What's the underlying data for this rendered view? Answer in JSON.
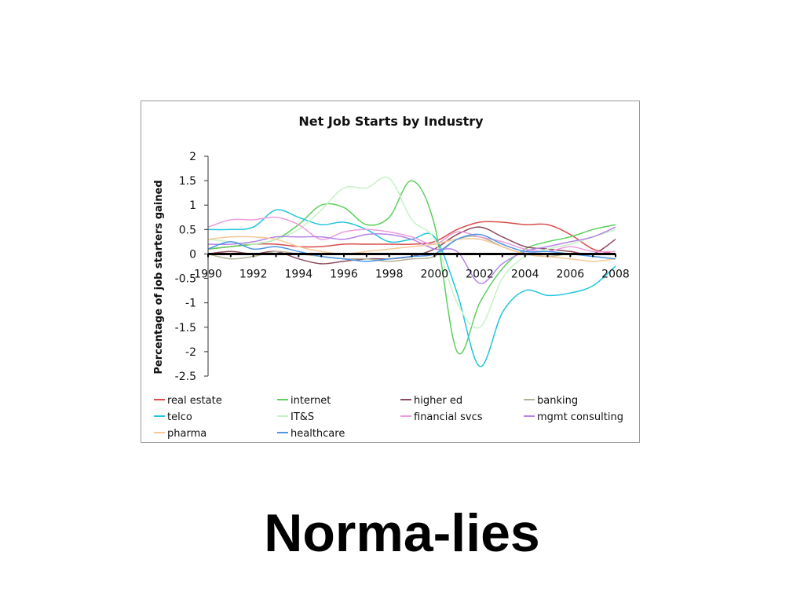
{
  "slide": {
    "caption": "Norma-lies"
  },
  "chart_data": {
    "type": "line",
    "title": "Net Job Starts by Industry",
    "xlabel": "",
    "ylabel": "Percentage of job starters gained",
    "ylim": [
      -2.5,
      2
    ],
    "yticks": [
      2,
      1.5,
      1,
      0.5,
      0,
      -0.5,
      -1,
      -1.5,
      -2,
      -2.5
    ],
    "ytick_labels": [
      "2",
      "1.5",
      "1",
      "0.5",
      "0",
      "-0.5",
      "-1",
      "-1.5",
      "-2",
      "-2.5"
    ],
    "xlim": [
      1990,
      2008
    ],
    "xticks": [
      1990,
      1992,
      1994,
      1996,
      1998,
      2000,
      2002,
      2004,
      2006,
      2008
    ],
    "xtick_labels": [
      "1990",
      "1992",
      "1994",
      "1996",
      "1998",
      "2000",
      "2002",
      "2004",
      "2006",
      "2008"
    ],
    "x": [
      1990,
      1991,
      1992,
      1993,
      1994,
      1995,
      1996,
      1997,
      1998,
      1999,
      2000,
      2001,
      2002,
      2003,
      2004,
      2005,
      2006,
      2007,
      2008
    ],
    "grid": false,
    "legend_position": "bottom",
    "series": [
      {
        "name": "real estate",
        "color": "#d94c4c",
        "values": [
          0.1,
          0.15,
          0.2,
          0.2,
          0.15,
          0.15,
          0.2,
          0.2,
          0.2,
          0.2,
          0.25,
          0.5,
          0.65,
          0.65,
          0.6,
          0.6,
          0.4,
          0.1,
          0.0
        ]
      },
      {
        "name": "internet",
        "color": "#5ccf5c",
        "values": [
          0.1,
          0.15,
          0.2,
          0.3,
          0.6,
          1.0,
          0.95,
          0.6,
          0.75,
          1.5,
          0.6,
          -2.0,
          -1.0,
          -0.3,
          0.1,
          0.25,
          0.35,
          0.5,
          0.6
        ]
      },
      {
        "name": "higher ed",
        "color": "#8c4a5a",
        "values": [
          0.0,
          0.05,
          0.0,
          0.05,
          -0.1,
          -0.2,
          -0.15,
          -0.1,
          -0.1,
          -0.05,
          0.1,
          0.4,
          0.55,
          0.35,
          0.15,
          0.1,
          0.05,
          0.0,
          0.3
        ]
      },
      {
        "name": "banking",
        "color": "#b2b296",
        "values": [
          0.0,
          -0.1,
          -0.05,
          0.05,
          0.0,
          -0.05,
          -0.1,
          -0.1,
          -0.15,
          -0.1,
          -0.05,
          0.3,
          0.35,
          0.15,
          0.0,
          -0.05,
          0.0,
          -0.05,
          -0.1
        ]
      },
      {
        "name": "telco",
        "color": "#22c5de",
        "values": [
          0.5,
          0.5,
          0.55,
          0.9,
          0.75,
          0.6,
          0.65,
          0.5,
          0.25,
          0.3,
          0.35,
          -0.8,
          -2.3,
          -1.2,
          -0.75,
          -0.85,
          -0.8,
          -0.65,
          -0.25
        ]
      },
      {
        "name": "IT&S",
        "color": "#c6f2c6",
        "values": [
          0.3,
          0.25,
          0.2,
          0.3,
          0.5,
          0.9,
          1.35,
          1.35,
          1.55,
          0.7,
          0.3,
          -1.0,
          -1.5,
          -0.5,
          -0.05,
          0.1,
          0.2,
          0.35,
          0.5
        ]
      },
      {
        "name": "financial svcs",
        "color": "#ec9cdc",
        "values": [
          0.55,
          0.7,
          0.7,
          0.75,
          0.6,
          0.3,
          0.45,
          0.5,
          0.45,
          0.35,
          0.2,
          0.45,
          0.35,
          0.25,
          0.1,
          0.05,
          0.15,
          0.05,
          0.05
        ]
      },
      {
        "name": "mgmt consulting",
        "color": "#b583e6",
        "values": [
          0.2,
          0.2,
          0.25,
          0.35,
          0.35,
          0.35,
          0.3,
          0.4,
          0.4,
          0.3,
          0.1,
          0.05,
          -0.6,
          -0.2,
          0.05,
          0.15,
          0.25,
          0.35,
          0.55
        ]
      },
      {
        "name": "pharma",
        "color": "#f5c896",
        "values": [
          0.3,
          0.35,
          0.35,
          0.3,
          0.15,
          0.05,
          0.0,
          0.05,
          0.1,
          0.15,
          0.2,
          0.3,
          0.3,
          0.15,
          0.0,
          -0.05,
          -0.1,
          -0.15,
          -0.1
        ]
      },
      {
        "name": "healthcare",
        "color": "#4c96e6",
        "values": [
          0.1,
          0.25,
          0.1,
          0.15,
          0.05,
          -0.05,
          -0.1,
          -0.15,
          -0.1,
          -0.05,
          0.0,
          0.3,
          0.4,
          0.2,
          0.05,
          0.05,
          0.0,
          -0.05,
          -0.1
        ]
      }
    ]
  }
}
